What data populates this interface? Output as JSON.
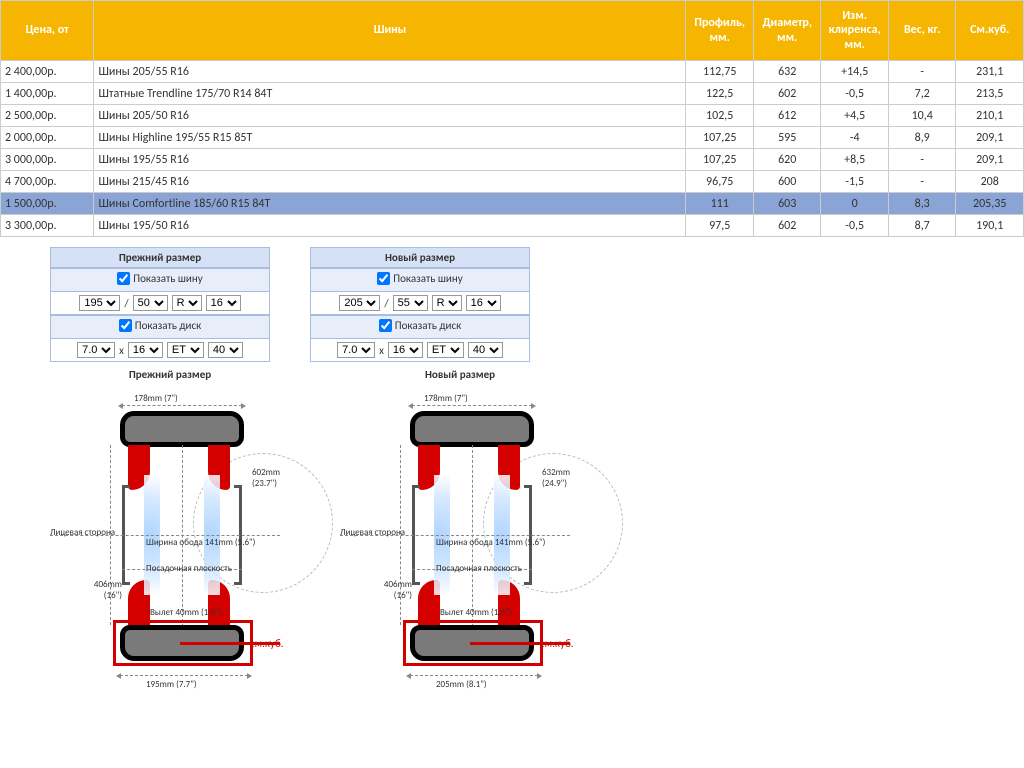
{
  "table": {
    "headers": [
      "Цена, от",
      "Шины",
      "Профиль, мм.",
      "Диаметр, мм.",
      "Изм. клиренса, мм.",
      "Вес, кг.",
      "См.куб."
    ],
    "rows": [
      {
        "price": "2 400,00р.",
        "name": "Шины 205/55 R16",
        "profile": "112,75",
        "diam": "632",
        "clear": "+14,5",
        "weight": "-",
        "vol": "231,1",
        "hl": false
      },
      {
        "price": "1 400,00р.",
        "name": "Штатные Trendline 175/70 R14 84T",
        "profile": "122,5",
        "diam": "602",
        "clear": "-0,5",
        "weight": "7,2",
        "vol": "213,5",
        "hl": false
      },
      {
        "price": "2 500,00р.",
        "name": "Шины 205/50 R16",
        "profile": "102,5",
        "diam": "612",
        "clear": "+4,5",
        "weight": "10,4",
        "vol": "210,1",
        "hl": false
      },
      {
        "price": "2 000,00р.",
        "name": "Шины Highline 195/55 R15 85T",
        "profile": "107,25",
        "diam": "595",
        "clear": "-4",
        "weight": "8,9",
        "vol": "209,1",
        "hl": false
      },
      {
        "price": "3 000,00р.",
        "name": "Шины 195/55 R16",
        "profile": "107,25",
        "diam": "620",
        "clear": "+8,5",
        "weight": "-",
        "vol": "209,1",
        "hl": false
      },
      {
        "price": "4 700,00р.",
        "name": "Шины 215/45 R16",
        "profile": "96,75",
        "diam": "600",
        "clear": "-1,5",
        "weight": "-",
        "vol": "208",
        "hl": false
      },
      {
        "price": "1 500,00р.",
        "name": "Шины Comfortline 185/60 R15 84T",
        "profile": "111",
        "diam": "603",
        "clear": "0",
        "weight": "8,3",
        "vol": "205,35",
        "hl": true
      },
      {
        "price": "3 300,00р.",
        "name": "Шины 195/50 R16",
        "profile": "97,5",
        "diam": "602",
        "clear": "-0,5",
        "weight": "8,7",
        "vol": "190,1",
        "hl": false
      }
    ],
    "header_bg": "#f5b500",
    "highlight_bg": "#8aa4d6"
  },
  "configs": {
    "old": {
      "title": "Прежний размер",
      "show_tire": "Показать шину",
      "tire": {
        "w": "195",
        "a": "50",
        "r": "R",
        "d": "16"
      },
      "show_disc": "Показать диск",
      "disc": {
        "w": "7.0",
        "d": "16",
        "et": "ET",
        "off": "40"
      }
    },
    "new": {
      "title": "Новый размер",
      "show_tire": "Показать шину",
      "tire": {
        "w": "205",
        "a": "55",
        "r": "R",
        "d": "16"
      },
      "show_disc": "Показать диск",
      "disc": {
        "w": "7.0",
        "d": "16",
        "et": "ET",
        "off": "40"
      }
    },
    "sep_slash": "/",
    "sep_x": "x"
  },
  "diagrams": {
    "old": {
      "title": "Прежний размер",
      "top": "178mm (7\")",
      "diam": "602mm\n(23.7\")",
      "face": "Лицевая сторона",
      "rim_w": "Ширина обода 141mm (5.6\")",
      "seat": "Посадочная плоскость",
      "rim_d": "406mm\n(16\")",
      "offset": "Вылет 40mm (1.6\")",
      "smkub": "см.куб.",
      "bot": "195mm (7.7\")"
    },
    "new": {
      "title": "Новый размер",
      "top": "178mm (7\")",
      "diam": "632mm\n(24.9\")",
      "face": "Лицевая сторона",
      "rim_w": "Ширина обода 141mm (5.6\")",
      "seat": "Посадочная плоскость",
      "rim_d": "406mm\n(16\")",
      "offset": "Вылет 40mm (1.6\")",
      "smkub": "см.куб.",
      "bot": "205mm (8.1\")"
    }
  },
  "colors": {
    "tire_fill": "#7a7a7a",
    "tire_border": "#000000",
    "bead_red": "#d40000",
    "sky_blue": "#a3ceff",
    "dash": "#888888"
  }
}
